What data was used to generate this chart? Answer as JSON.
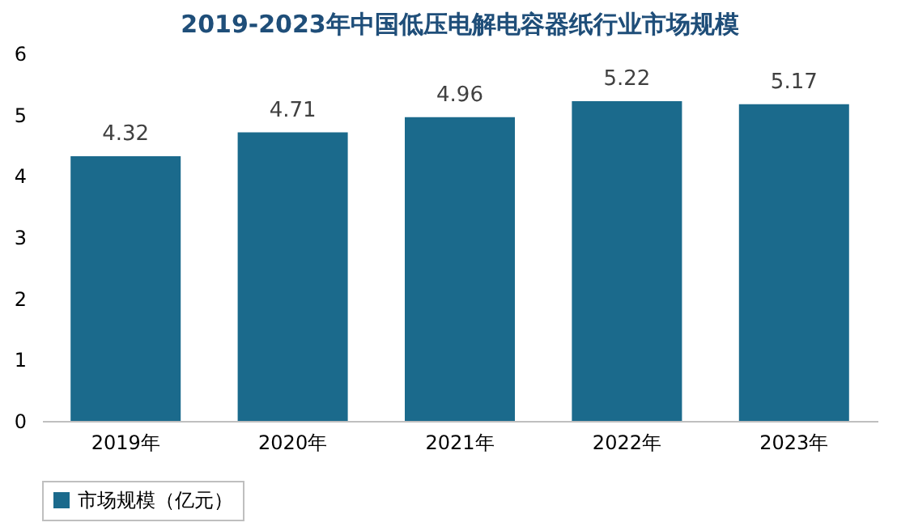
{
  "chart_data": {
    "type": "bar",
    "title": "2019-2023年中国低压电解电容器纸行业市场规模",
    "categories": [
      "2019年",
      "2020年",
      "2021年",
      "2022年",
      "2023年"
    ],
    "series": [
      {
        "name": "市场规模（亿元）",
        "color": "#1b6a8c",
        "values": [
          4.32,
          4.71,
          4.96,
          5.22,
          5.17
        ]
      }
    ],
    "ylim": [
      0,
      6
    ],
    "yticks": [
      0,
      1,
      2,
      3,
      4,
      5,
      6
    ],
    "grid": false,
    "legend": "bottom",
    "data_labels": true
  }
}
